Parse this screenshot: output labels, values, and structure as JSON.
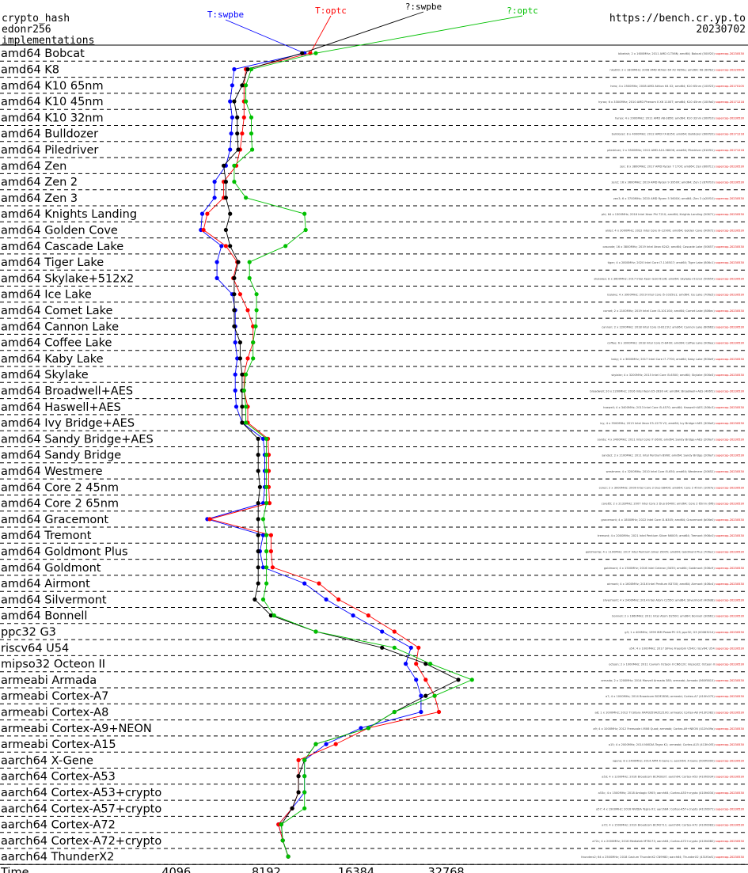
{
  "header": {
    "left_lines": [
      "crypto_hash",
      "edonr256",
      "implementations"
    ],
    "right_url": "https://bench.cr.yp.to",
    "right_date": "20230702"
  },
  "chart_data": {
    "type": "line",
    "orientation": "horizontal",
    "xscale": "log2",
    "xlim": [
      2900,
      60000
    ],
    "xlabel": "Time",
    "xticks": [
      4096,
      8192,
      16384,
      32768
    ],
    "categories": [
      "amd64 Bobcat",
      "amd64 K8",
      "amd64 K10 65nm",
      "amd64 K10 45nm",
      "amd64 K10 32nm",
      "amd64 Bulldozer",
      "amd64 Piledriver",
      "amd64 Zen",
      "amd64 Zen 2",
      "amd64 Zen 3",
      "amd64 Knights Landing",
      "amd64 Golden Cove",
      "amd64 Cascade Lake",
      "amd64 Tiger Lake",
      "amd64 Skylake+512x2",
      "amd64 Ice Lake",
      "amd64 Comet Lake",
      "amd64 Cannon Lake",
      "amd64 Coffee Lake",
      "amd64 Kaby Lake",
      "amd64 Skylake",
      "amd64 Broadwell+AES",
      "amd64 Haswell+AES",
      "amd64 Ivy Bridge+AES",
      "amd64 Sandy Bridge+AES",
      "amd64 Sandy Bridge",
      "amd64 Westmere",
      "amd64 Core 2 45nm",
      "amd64 Core 2 65nm",
      "amd64 Gracemont",
      "amd64 Tremont",
      "amd64 Goldmont Plus",
      "amd64 Goldmont",
      "amd64 Airmont",
      "amd64 Silvermont",
      "amd64 Bonnell",
      "ppc32 G3",
      "riscv64 U54",
      "mipso32 Octeon II",
      "armeabi Armada",
      "armeabi Cortex-A7",
      "armeabi Cortex-A8",
      "armeabi Cortex-A9+NEON",
      "armeabi Cortex-A15",
      "aarch64 X-Gene",
      "aarch64 Cortex-A53",
      "aarch64 Cortex-A53+crypto",
      "aarch64 Cortex-A57+crypto",
      "aarch64 Cortex-A72",
      "aarch64 Cortex-A72+crypto",
      "aarch64 ThunderX2"
    ],
    "series": [
      {
        "name": "T:swpbe",
        "color": "#0000ff",
        "values": [
          11000,
          6400,
          6300,
          6200,
          6300,
          6250,
          6200,
          6000,
          5500,
          5500,
          5000,
          4950,
          5800,
          5600,
          5600,
          6300,
          6450,
          6450,
          6450,
          6550,
          6450,
          6450,
          6500,
          6800,
          8000,
          8100,
          8100,
          8100,
          8000,
          5200,
          8000,
          7800,
          8000,
          11000,
          13000,
          16000,
          20000,
          25000,
          24000,
          26000,
          27000,
          27000,
          17000,
          13000,
          11000,
          11000,
          11000,
          10000,
          9000,
          9300,
          9700
        ]
      },
      {
        "name": "T:optc",
        "color": "#ff0000",
        "values": [
          11500,
          7000,
          6900,
          6900,
          6900,
          6800,
          6700,
          6500,
          5900,
          5900,
          5200,
          5050,
          6000,
          6550,
          6350,
          6700,
          7100,
          7400,
          7400,
          7100,
          6900,
          6900,
          7100,
          7100,
          8300,
          8350,
          8350,
          8350,
          8400,
          5300,
          8500,
          8500,
          8600,
          12300,
          14300,
          18000,
          22000,
          26500,
          26000,
          28000,
          30000,
          31000,
          18000,
          14000,
          10500,
          10500,
          10500,
          10000,
          9000,
          9300,
          9700
        ]
      },
      {
        "name": "?:swpbe",
        "color": "#000000",
        "values": [
          10800,
          7100,
          6800,
          6400,
          6550,
          6550,
          6600,
          5900,
          6000,
          6000,
          6200,
          6000,
          6200,
          6600,
          6400,
          6400,
          6400,
          6400,
          6700,
          6700,
          6800,
          6800,
          6800,
          6800,
          7700,
          7700,
          7700,
          7800,
          7700,
          7700,
          7700,
          7700,
          7700,
          7700,
          7500,
          8500,
          12000,
          20000,
          28000,
          36000,
          28000,
          22000,
          18000,
          12000,
          11000,
          10500,
          10500,
          10000,
          9200,
          9300,
          9700
        ]
      },
      {
        "name": "?:optc",
        "color": "#00c000",
        "values": [
          12000,
          7300,
          7000,
          7000,
          7300,
          7300,
          7350,
          6400,
          6400,
          7000,
          11000,
          11100,
          9500,
          7200,
          7200,
          7600,
          7600,
          7550,
          7400,
          7400,
          7000,
          6900,
          7000,
          7000,
          8200,
          8200,
          8200,
          8200,
          8200,
          8000,
          8200,
          8200,
          8200,
          8200,
          8000,
          8700,
          12000,
          22000,
          29000,
          40000,
          30000,
          22000,
          18000,
          12000,
          11000,
          11000,
          11000,
          11000,
          9200,
          9300,
          9700
        ]
      }
    ],
    "machine_rows": [
      {
        "label": "bibeksh; 2 x 1600MHz; 2011 AMD G-T56N; amd64; Bobcat (500f20)",
        "date": "supercop-20230530"
      },
      {
        "label": "nkat00; 2 x 1800MHz; 2008 AMD Athlon 64 X2 4850e; amd64; K8 (60fb2)",
        "date": "supercop-20220506"
      },
      {
        "label": "hero; 4 x 2500MHz; 2008 AMD Athlon 64 X2; amd64; K10 65nm (100f23)",
        "date": "supercop-20170105"
      },
      {
        "label": "hyrax; 6 x 3300MHz; 2010 AMD Phenom II X6 1100T; amd64; K10 45nm (100fa0)",
        "date": "supercop-20171218"
      },
      {
        "label": "hyrax; 4 x 2900MHz; 2011 AMD A8-3850; amd64; K10 32nm (300f10)",
        "date": "supercop-20230530"
      },
      {
        "label": "bulldozer; 8 x 4000MHz; 2012 AMD FX-8350; amd64; Bulldozer (600f20)",
        "date": "supercop-20171218"
      },
      {
        "label": "piledriver; 2 x 3500MHz; 2012 AMD A10-5800K; amd64; Piledriver (610f01)",
        "date": "supercop-20171218"
      },
      {
        "label": "zen; 8 x 3800MHz; 2017 AMD Ryzen 7 1700; amd64; Zen (800f11)",
        "date": "supercop-20230530"
      },
      {
        "label": "zen2; 16 x 3600MHz; 2019 AMD Ryzen 9 3950X; amd64; Zen 2 (870f10)",
        "date": "supercop-20230530"
      },
      {
        "label": "zen3; 6 x 3700MHz; 2020 AMD Ryzen 5 5600X; amd64; Zen 3 (a20f10)",
        "date": "supercop-20230530"
      },
      {
        "label": "phi; 64 x 1300MHz; 2016 Intel Xeon Phi 7210; amd64; Knights Landing (50671)",
        "date": "supercop-20230530"
      },
      {
        "label": "alder; 4 x 3000MHz; 2022 Intel Core i9-12900; amd64; Golden Cove (90672)",
        "date": "supercop-20230530"
      },
      {
        "label": "cascade; 16 x 3800MHz; 2019 Intel Xeon 6242; amd64; Cascade Lake (50657)",
        "date": "supercop-20230530"
      },
      {
        "label": "tiger; 4 x 2800MHz; 2020 Intel Core i7-1165G7; amd64; Tiger Lake (806c1)",
        "date": "supercop-20230530"
      },
      {
        "label": "skylakex; 8 x 3600MHz; 2017 Intel Xeon Gold 6136; amd64; Skylake+512x2 (50654)",
        "date": "supercop-20230530"
      },
      {
        "label": "icelake; 4 x 3900MHz; 2019 Intel Core i5-1035G1; amd64; Ice Lake (706e5)",
        "date": "supercop-20230530"
      },
      {
        "label": "comet; 2 x 2100MHz; 2019 Intel Core i3-10110U; amd64; Comet Lake (806ec)",
        "date": "supercop-20230530"
      },
      {
        "label": "cannon; 2 x 2200MHz; 2018 Intel Core i3-8121U; amd64; Cannon Lake (60663)",
        "date": "supercop-20230530"
      },
      {
        "label": "coffee; 6 x 3000MHz; 2018 Intel Core i5-8400; amd64; Coffee Lake (906ea)",
        "date": "supercop-20230530"
      },
      {
        "label": "kaby; 4 x 3600MHz; 2017 Intel Core i7-7700; amd64; Kaby Lake (906e9)",
        "date": "supercop-20230530"
      },
      {
        "label": "skylake; 4 x 3200MHz; 2015 Intel Core i5-6500; amd64; Skylake (506e3)",
        "date": "supercop-20230530"
      },
      {
        "label": "broadwell; 20 x 2200MHz; 2016 Intel Xeon E5-2630 v4; amd64; Broadwell+AES (406f1)",
        "date": "supercop-20230530"
      },
      {
        "label": "haswell; 4 x 3400MHz; 2013 Intel Core i5-4570; amd64; Haswell+AES (306c3)",
        "date": "supercop-20230530"
      },
      {
        "label": "ivy; 4 x 3500MHz; 2013 Intel Xeon E3-1275 V2; amd64; Ivy Bridge+AES (306a9)",
        "date": "supercop-20230530"
      },
      {
        "label": "sandy; 4 x 3400MHz; 2011 Intel Core i7-2600; amd64; Sandy Bridge+AES (206a7)",
        "date": "supercop-20230530"
      },
      {
        "label": "sandy2; 2 x 2100MHz; 2011 Intel Pentium B960; amd64; Sandy Bridge (206a7)",
        "date": "supercop-20230530"
      },
      {
        "label": "westmere; 4 x 3200MHz; 2010 Intel Core i5-650; amd64; Westmere (20652)",
        "date": "supercop-20230530"
      },
      {
        "label": "core2; 2 x 3000MHz; 2009 Intel Core 2 Duo E8400; amd64; Core 2 45nm (1067a)",
        "date": "supercop-20230530"
      },
      {
        "label": "core65; 2 x 2133MHz; 2007 Intel Core 2 Duo E6400; amd64; Core 2 65nm (6f6)",
        "date": "supercop-20230530"
      },
      {
        "label": "gracemont; 4 x 1800MHz; 2022 Intel Core i3-N305; amd64; Gracemont (b06e0)",
        "date": "supercop-20230530"
      },
      {
        "label": "tremont; 4 x 2000MHz; 2021 Intel Pentium Silver N6005; amd64; Tremont (906c0)",
        "date": "supercop-20230530"
      },
      {
        "label": "goldmontp; 4 x 1100MHz; 2017 Intel Pentium Silver J5005; amd64; Goldmont Plus (706a1)",
        "date": "supercop-20230530"
      },
      {
        "label": "goldmont; 4 x 1500MHz; 2016 Intel Celeron J3455; amd64; Goldmont (506c9)",
        "date": "supercop-20230530"
      },
      {
        "label": "airmont; 4 x 1600MHz; 2016 Intel Pentium N3700; amd64; Airmont (406c4)",
        "date": "supercop-20230530"
      },
      {
        "label": "silvermont; 4 x 2400MHz; 2014 Intel Atom C2550; amd64; Silvermont (406d8)",
        "date": "supercop-20230530"
      },
      {
        "label": "bonnell; 2 x 1660MHz; 2011 Intel Atom D2500; amd64; Bonnell (30661)",
        "date": "supercop-20230530"
      },
      {
        "label": "g3; 1 x 400MHz; 1999 IBM PowerPC G3; ppc32; G3 (00083214)",
        "date": "supercop-20230530"
      },
      {
        "label": "u54; 4 x 1000MHz; 2017 SiFive Freedom U540; riscv64; U54",
        "date": "supercop-20230530"
      },
      {
        "label": "octeon; 2 x 1000MHz; 2011 Cavium Octeon II CN6120; mipso32; Octeon II",
        "date": "supercop-20230530"
      },
      {
        "label": "armada; 2 x 1200MHz; 2014 Marvell Armada 385; armeabi; Armada (560f5815)",
        "date": "supercop-20230530"
      },
      {
        "label": "a7; 4 x 1000MHz; 2014 Broadcom BCM2836; armeabi; Cortex-A7 (410fc075)",
        "date": "supercop-20230530"
      },
      {
        "label": "a8; 1 x 1000MHz; 2012 TI Sitara XAM3359AZCZ100; armeabi; Cortex-A8 (413fc082)",
        "date": "supercop-20230530"
      },
      {
        "label": "a9; 4 x 1000MHz; 2012 Freescale i.MX6 Quad; armeabi; Cortex-A9+NEON (412fc09a)",
        "date": "supercop-20230530"
      },
      {
        "label": "a15; 4 x 2000MHz; 2014 NVIDIA Tegra K1; armeabi; Cortex-A15 (413fc0f3)",
        "date": "supercop-20230530"
      },
      {
        "label": "xgene; 8 x 2400MHz; 2014 APM X-Gene 1; aarch64; X-Gene (500f0000)",
        "date": "supercop-20230530"
      },
      {
        "label": "a53; 4 x 1200MHz; 2016 Broadcom BCM2837; aarch64; Cortex-A53 (410fd034)",
        "date": "supercop-20230530"
      },
      {
        "label": "a53c; 4 x 1500MHz; 2018 Amlogic S905; aarch64; Cortex-A53+crypto (410fd034)",
        "date": "supercop-20230530"
      },
      {
        "label": "a57; 4 x 1900MHz; 2016 NVIDIA Tegra X1; aarch64; Cortex-A57+crypto (411fd071)",
        "date": "supercop-20230530"
      },
      {
        "label": "a72; 4 x 1500MHz; 2019 Broadcom BCM2711; aarch64; Cortex-A72 (410fd083)",
        "date": "supercop-20230530"
      },
      {
        "label": "a72c; 4 x 2000MHz; 2016 Mediatek MT8173; aarch64; Cortex-A72+crypto (410fd080)",
        "date": "supercop-20230530"
      },
      {
        "label": "thunderx2; 64 x 2500MHz; 2018 Cavium ThunderX2 CN9980; aarch64; ThunderX2 (431f0af1)",
        "date": "supercop-20230530"
      }
    ]
  }
}
